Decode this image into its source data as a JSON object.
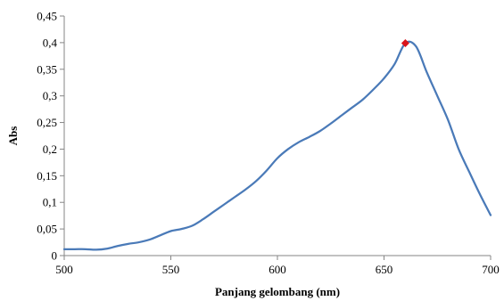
{
  "chart_data": {
    "type": "line",
    "xlabel": "Panjang gelombang (nm)",
    "ylabel": "Abs",
    "xlim": [
      500,
      700
    ],
    "ylim": [
      0,
      0.45
    ],
    "x_ticks": [
      500,
      550,
      600,
      650,
      700
    ],
    "x_tick_labels": [
      "500",
      "550",
      "600",
      "650",
      "700"
    ],
    "y_ticks": [
      0,
      0.05,
      0.1,
      0.15,
      0.2,
      0.25,
      0.3,
      0.35,
      0.4,
      0.45
    ],
    "y_tick_labels": [
      "0",
      "0,05",
      "0,1",
      "0,15",
      "0,2",
      "0,25",
      "0,3",
      "0,35",
      "0,4",
      "0,45"
    ],
    "grid": false,
    "legend": "none",
    "line_color": "#4a7ab8",
    "marker_color": "#d9141c",
    "series": [
      {
        "x": [
          500,
          505,
          510,
          515,
          520,
          525,
          530,
          535,
          540,
          545,
          550,
          555,
          560,
          565,
          570,
          575,
          580,
          585,
          590,
          595,
          600,
          605,
          610,
          615,
          620,
          625,
          630,
          635,
          640,
          645,
          650,
          655,
          660,
          665,
          670,
          675,
          680,
          685,
          690,
          695,
          700
        ],
        "y": [
          0.012,
          0.012,
          0.012,
          0.011,
          0.013,
          0.018,
          0.022,
          0.025,
          0.03,
          0.038,
          0.046,
          0.05,
          0.056,
          0.068,
          0.082,
          0.096,
          0.11,
          0.124,
          0.14,
          0.16,
          0.183,
          0.2,
          0.213,
          0.223,
          0.234,
          0.248,
          0.263,
          0.278,
          0.293,
          0.312,
          0.333,
          0.36,
          0.399,
          0.393,
          0.345,
          0.3,
          0.255,
          0.2,
          0.157,
          0.115,
          0.076
        ]
      }
    ],
    "highlight_point": {
      "x": 660,
      "y": 0.399
    }
  }
}
